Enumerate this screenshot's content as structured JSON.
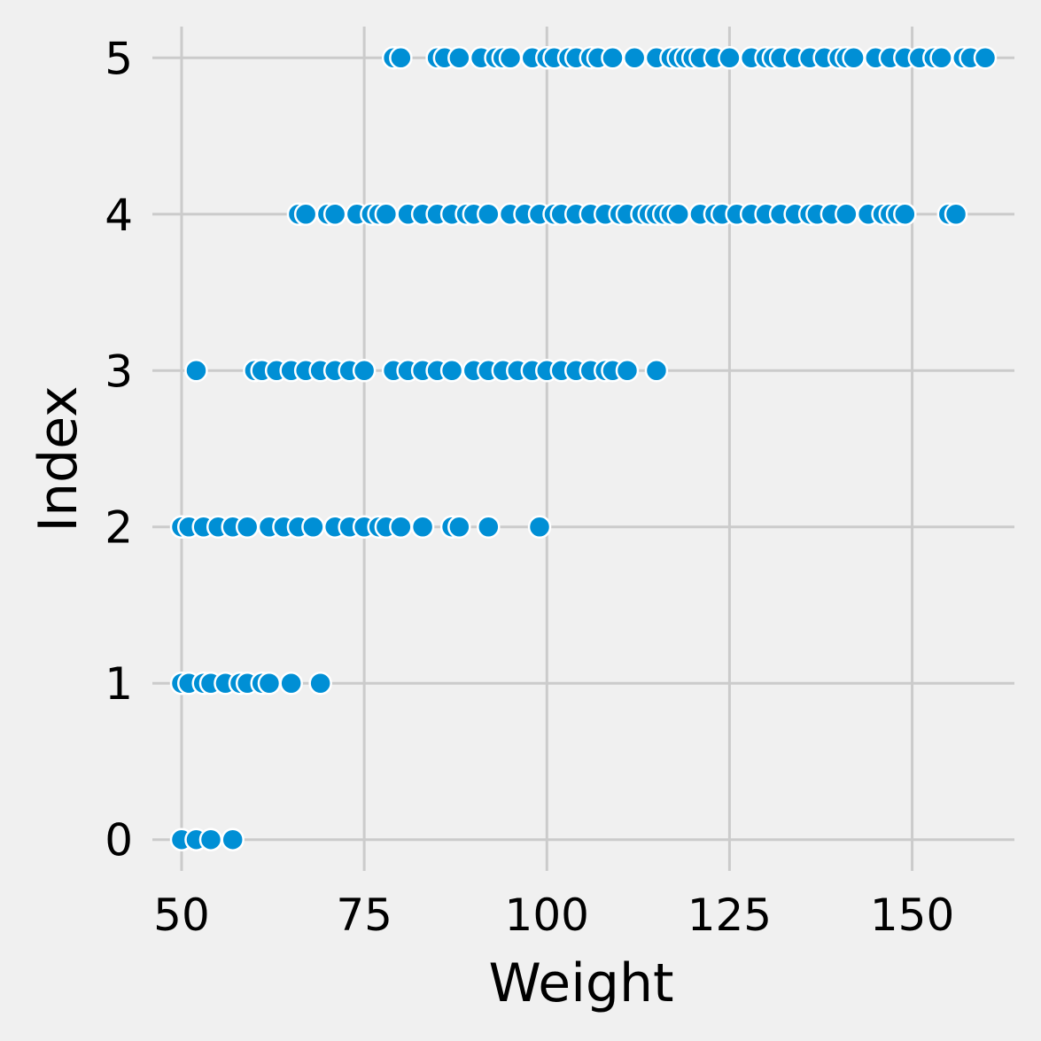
{
  "chart_data": {
    "type": "scatter",
    "title": "",
    "xlabel": "Weight",
    "ylabel": "Index",
    "xlim": [
      46,
      164
    ],
    "ylim": [
      -0.2,
      5.2
    ],
    "xticks": [
      50,
      75,
      100,
      125,
      150
    ],
    "yticks": [
      0,
      1,
      2,
      3,
      4,
      5
    ],
    "grid": true,
    "colors": {
      "background": "#f0f0f0",
      "grid": "#cbcbcb",
      "point": "#008fd5",
      "point_edge": "#ffffff"
    },
    "series": [
      {
        "points": [
          [
            50,
            0
          ],
          [
            52,
            0
          ],
          [
            54,
            0
          ],
          [
            57,
            0
          ],
          [
            50,
            1
          ],
          [
            51,
            1
          ],
          [
            53,
            1
          ],
          [
            54,
            1
          ],
          [
            56,
            1
          ],
          [
            58,
            1
          ],
          [
            59,
            1
          ],
          [
            61,
            1
          ],
          [
            62,
            1
          ],
          [
            65,
            1
          ],
          [
            69,
            1
          ],
          [
            50,
            2
          ],
          [
            51,
            2
          ],
          [
            53,
            2
          ],
          [
            55,
            2
          ],
          [
            57,
            2
          ],
          [
            59,
            2
          ],
          [
            62,
            2
          ],
          [
            64,
            2
          ],
          [
            66,
            2
          ],
          [
            68,
            2
          ],
          [
            71,
            2
          ],
          [
            73,
            2
          ],
          [
            75,
            2
          ],
          [
            77,
            2
          ],
          [
            78,
            2
          ],
          [
            80,
            2
          ],
          [
            83,
            2
          ],
          [
            87,
            2
          ],
          [
            88,
            2
          ],
          [
            92,
            2
          ],
          [
            99,
            2
          ],
          [
            52,
            3
          ],
          [
            60,
            3
          ],
          [
            61,
            3
          ],
          [
            63,
            3
          ],
          [
            65,
            3
          ],
          [
            67,
            3
          ],
          [
            69,
            3
          ],
          [
            71,
            3
          ],
          [
            73,
            3
          ],
          [
            75,
            3
          ],
          [
            79,
            3
          ],
          [
            81,
            3
          ],
          [
            83,
            3
          ],
          [
            85,
            3
          ],
          [
            87,
            3
          ],
          [
            90,
            3
          ],
          [
            92,
            3
          ],
          [
            94,
            3
          ],
          [
            96,
            3
          ],
          [
            98,
            3
          ],
          [
            100,
            3
          ],
          [
            102,
            3
          ],
          [
            104,
            3
          ],
          [
            106,
            3
          ],
          [
            108,
            3
          ],
          [
            109,
            3
          ],
          [
            111,
            3
          ],
          [
            115,
            3
          ],
          [
            66,
            4
          ],
          [
            67,
            4
          ],
          [
            70,
            4
          ],
          [
            71,
            4
          ],
          [
            74,
            4
          ],
          [
            76,
            4
          ],
          [
            77,
            4
          ],
          [
            78,
            4
          ],
          [
            81,
            4
          ],
          [
            83,
            4
          ],
          [
            85,
            4
          ],
          [
            87,
            4
          ],
          [
            89,
            4
          ],
          [
            90,
            4
          ],
          [
            92,
            4
          ],
          [
            95,
            4
          ],
          [
            97,
            4
          ],
          [
            99,
            4
          ],
          [
            101,
            4
          ],
          [
            102,
            4
          ],
          [
            104,
            4
          ],
          [
            106,
            4
          ],
          [
            108,
            4
          ],
          [
            110,
            4
          ],
          [
            111,
            4
          ],
          [
            113,
            4
          ],
          [
            114,
            4
          ],
          [
            115,
            4
          ],
          [
            116,
            4
          ],
          [
            117,
            4
          ],
          [
            118,
            4
          ],
          [
            121,
            4
          ],
          [
            123,
            4
          ],
          [
            124,
            4
          ],
          [
            126,
            4
          ],
          [
            128,
            4
          ],
          [
            130,
            4
          ],
          [
            132,
            4
          ],
          [
            134,
            4
          ],
          [
            136,
            4
          ],
          [
            137,
            4
          ],
          [
            139,
            4
          ],
          [
            141,
            4
          ],
          [
            144,
            4
          ],
          [
            146,
            4
          ],
          [
            147,
            4
          ],
          [
            148,
            4
          ],
          [
            149,
            4
          ],
          [
            155,
            4
          ],
          [
            156,
            4
          ],
          [
            79,
            5
          ],
          [
            80,
            5
          ],
          [
            85,
            5
          ],
          [
            86,
            5
          ],
          [
            88,
            5
          ],
          [
            91,
            5
          ],
          [
            93,
            5
          ],
          [
            94,
            5
          ],
          [
            95,
            5
          ],
          [
            98,
            5
          ],
          [
            100,
            5
          ],
          [
            101,
            5
          ],
          [
            103,
            5
          ],
          [
            104,
            5
          ],
          [
            106,
            5
          ],
          [
            107,
            5
          ],
          [
            109,
            5
          ],
          [
            112,
            5
          ],
          [
            115,
            5
          ],
          [
            117,
            5
          ],
          [
            118,
            5
          ],
          [
            119,
            5
          ],
          [
            120,
            5
          ],
          [
            121,
            5
          ],
          [
            123,
            5
          ],
          [
            125,
            5
          ],
          [
            128,
            5
          ],
          [
            130,
            5
          ],
          [
            131,
            5
          ],
          [
            132,
            5
          ],
          [
            134,
            5
          ],
          [
            136,
            5
          ],
          [
            138,
            5
          ],
          [
            140,
            5
          ],
          [
            141,
            5
          ],
          [
            142,
            5
          ],
          [
            145,
            5
          ],
          [
            147,
            5
          ],
          [
            149,
            5
          ],
          [
            151,
            5
          ],
          [
            153,
            5
          ],
          [
            154,
            5
          ],
          [
            157,
            5
          ],
          [
            158,
            5
          ],
          [
            160,
            5
          ]
        ]
      }
    ]
  }
}
